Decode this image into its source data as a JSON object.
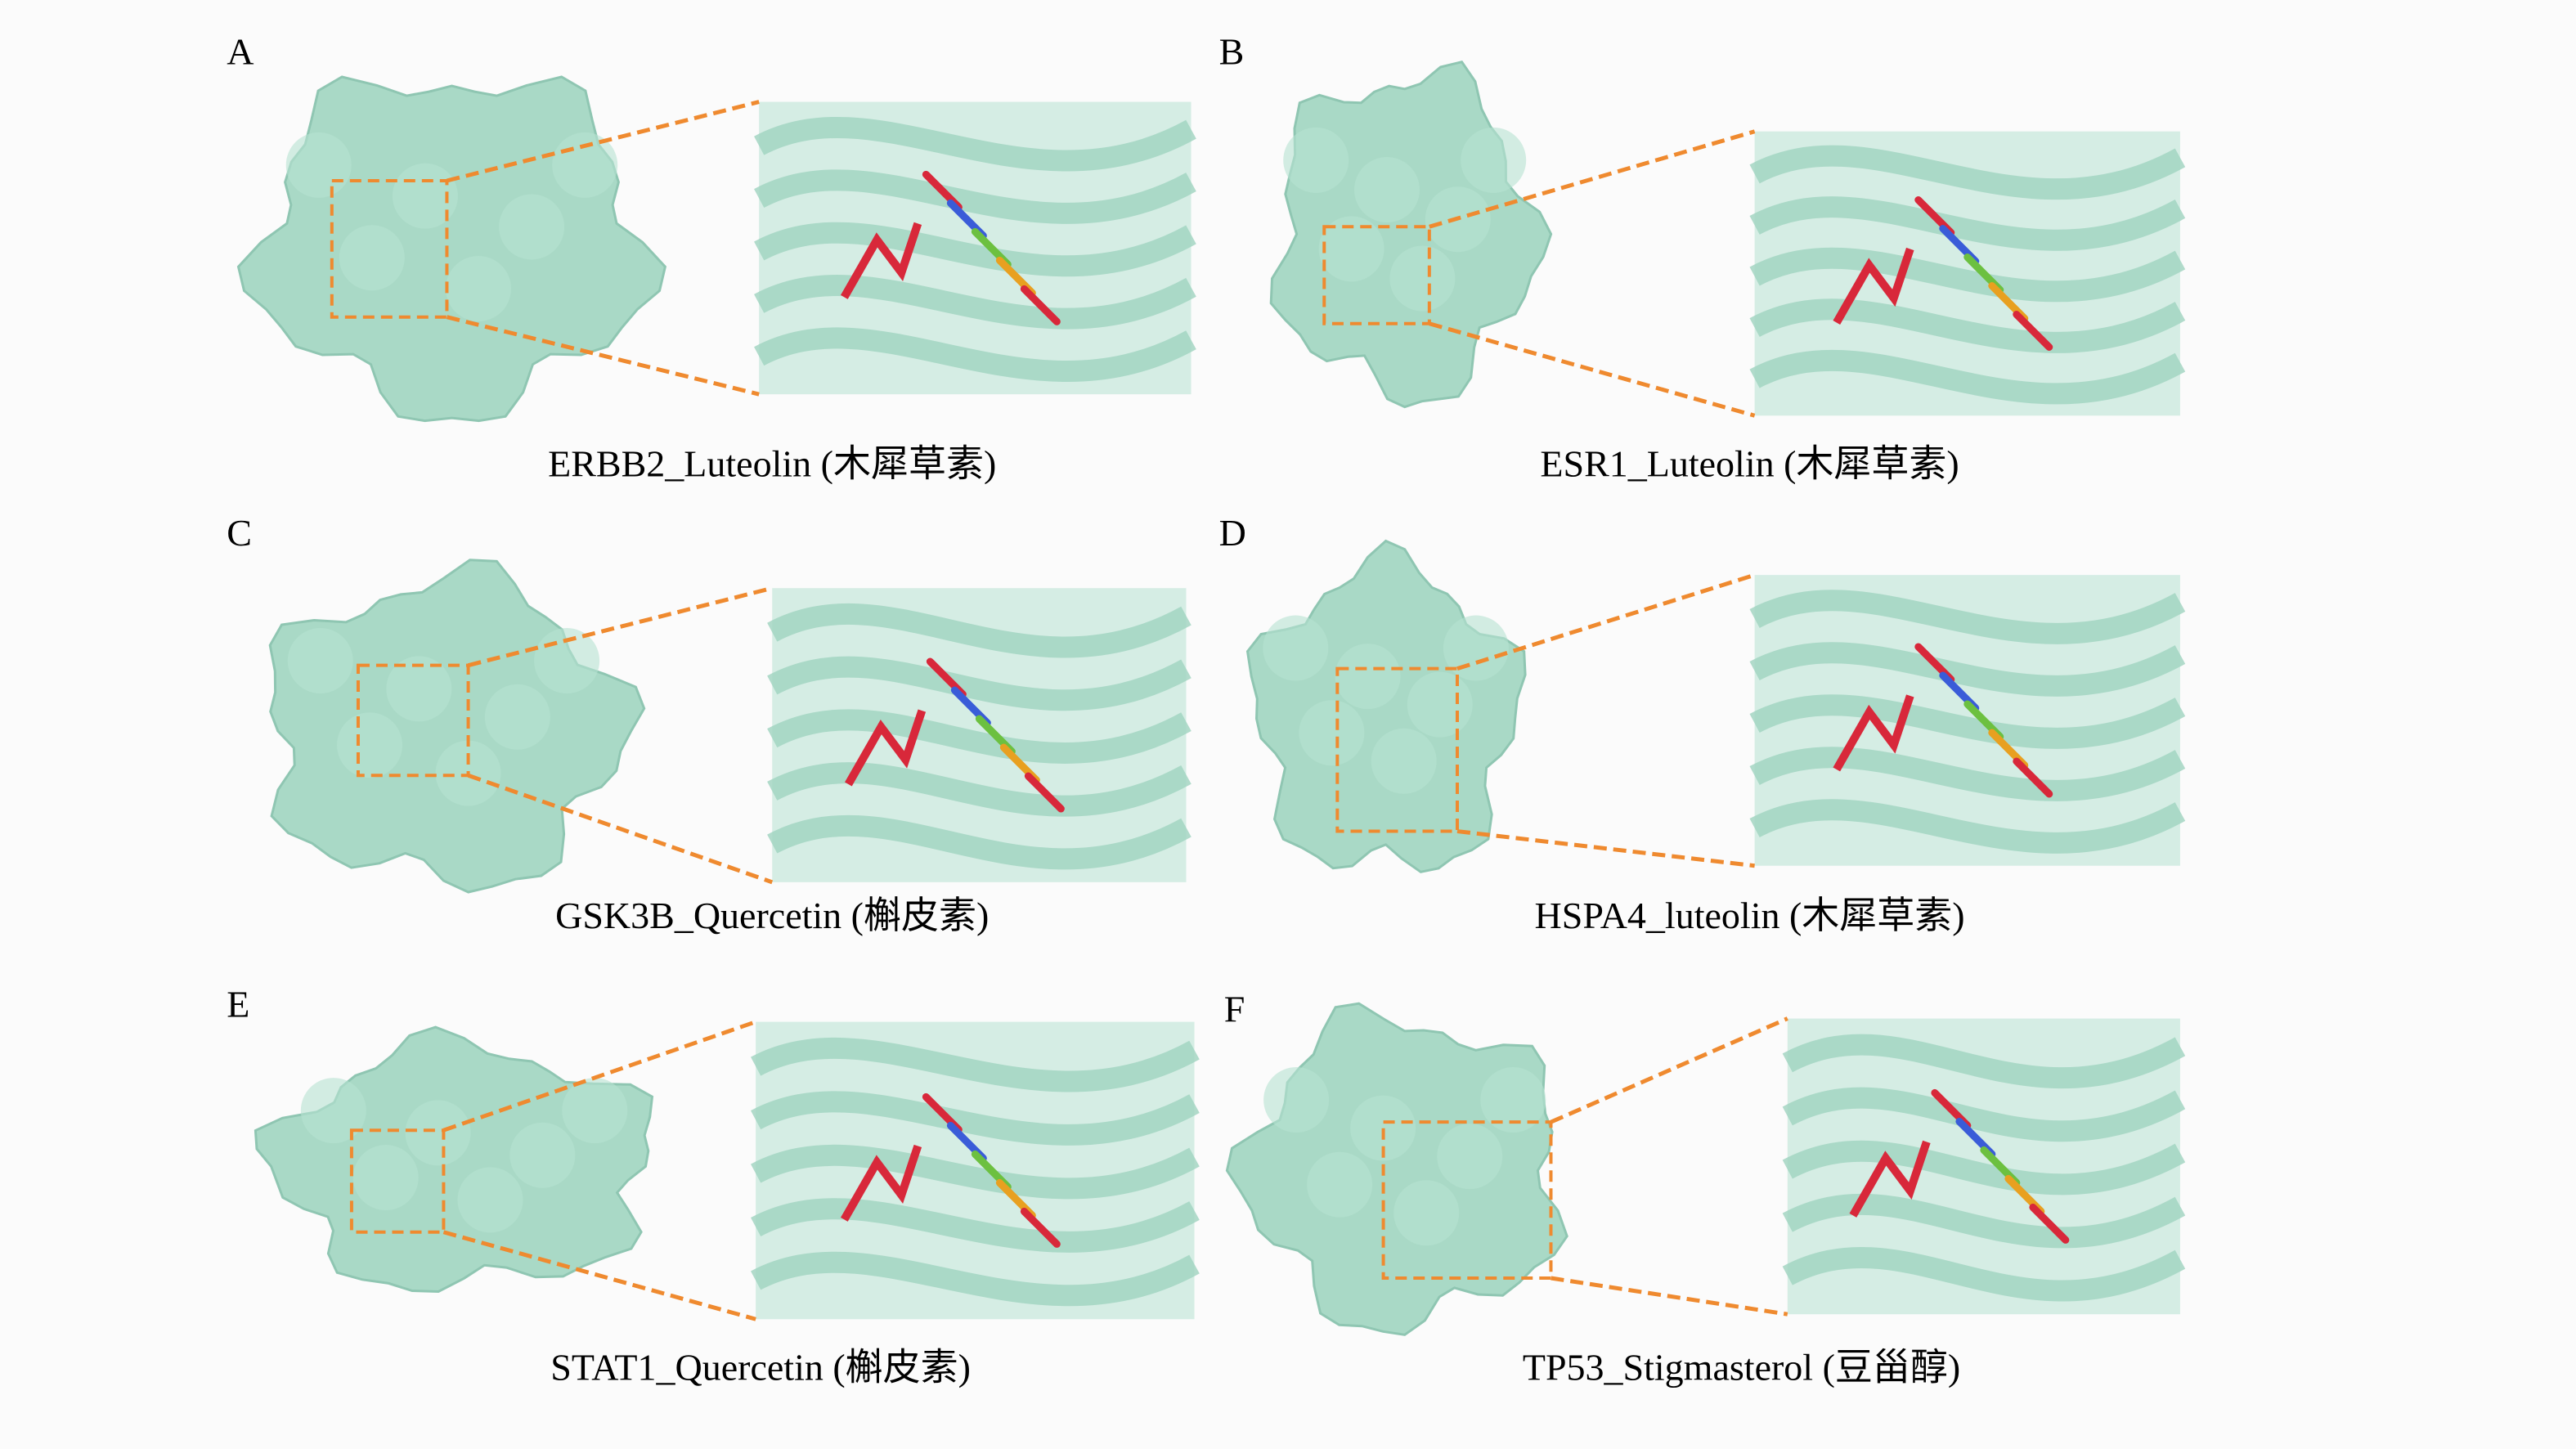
{
  "panels": [
    {
      "label": "A",
      "caption": "ERBB2_Luteolin (木犀草素)"
    },
    {
      "label": "B",
      "caption": "ESR1_Luteolin (木犀草素)"
    },
    {
      "label": "C",
      "caption": "GSK3B_Quercetin (槲皮素)"
    },
    {
      "label": "D",
      "caption": "HSPA4_luteolin (木犀草素)"
    },
    {
      "label": "E",
      "caption": "STAT1_Quercetin (槲皮素)"
    },
    {
      "label": "F",
      "caption": "TP53_Stigmasterol (豆甾醇)"
    }
  ]
}
